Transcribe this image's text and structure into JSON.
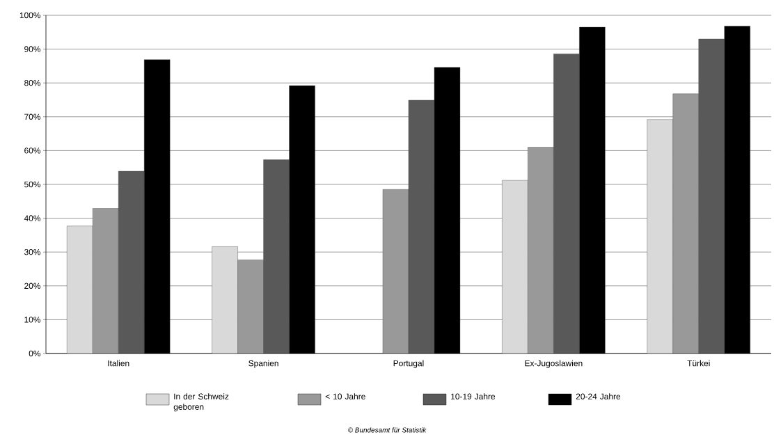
{
  "chart_data": {
    "type": "bar",
    "categories": [
      "Italien",
      "Spanien",
      "Portugal",
      "Ex-Jugoslawien",
      "Türkei"
    ],
    "series": [
      {
        "name": "In der Schweiz geboren",
        "color": "#d9d9d9",
        "values": [
          37.7,
          31.6,
          null,
          51.2,
          69.2
        ]
      },
      {
        "name": "< 10 Jahre",
        "color": "#999999",
        "values": [
          42.9,
          27.7,
          48.5,
          61.0,
          76.8
        ]
      },
      {
        "name": "10-19 Jahre",
        "color": "#595959",
        "values": [
          53.9,
          57.3,
          74.9,
          88.6,
          93.0
        ]
      },
      {
        "name": "20-24 Jahre",
        "color": "#000000",
        "values": [
          86.9,
          79.2,
          84.6,
          96.5,
          96.8
        ]
      }
    ],
    "ylim": [
      0,
      100
    ],
    "yticks": [
      {
        "value": 0,
        "label": "0%"
      },
      {
        "value": 10,
        "label": "10%"
      },
      {
        "value": 20,
        "label": "20%"
      },
      {
        "value": 30,
        "label": "30%"
      },
      {
        "value": 40,
        "label": "40%"
      },
      {
        "value": 50,
        "label": "50%"
      },
      {
        "value": 60,
        "label": "60%"
      },
      {
        "value": 70,
        "label": "70%"
      },
      {
        "value": 80,
        "label": "80%"
      },
      {
        "value": 90,
        "label": "90%"
      },
      {
        "value": 100,
        "label": "100%"
      }
    ],
    "grid": "y",
    "legend": "bottom",
    "annotations": [
      "© Bundesamt für Statistik"
    ]
  }
}
